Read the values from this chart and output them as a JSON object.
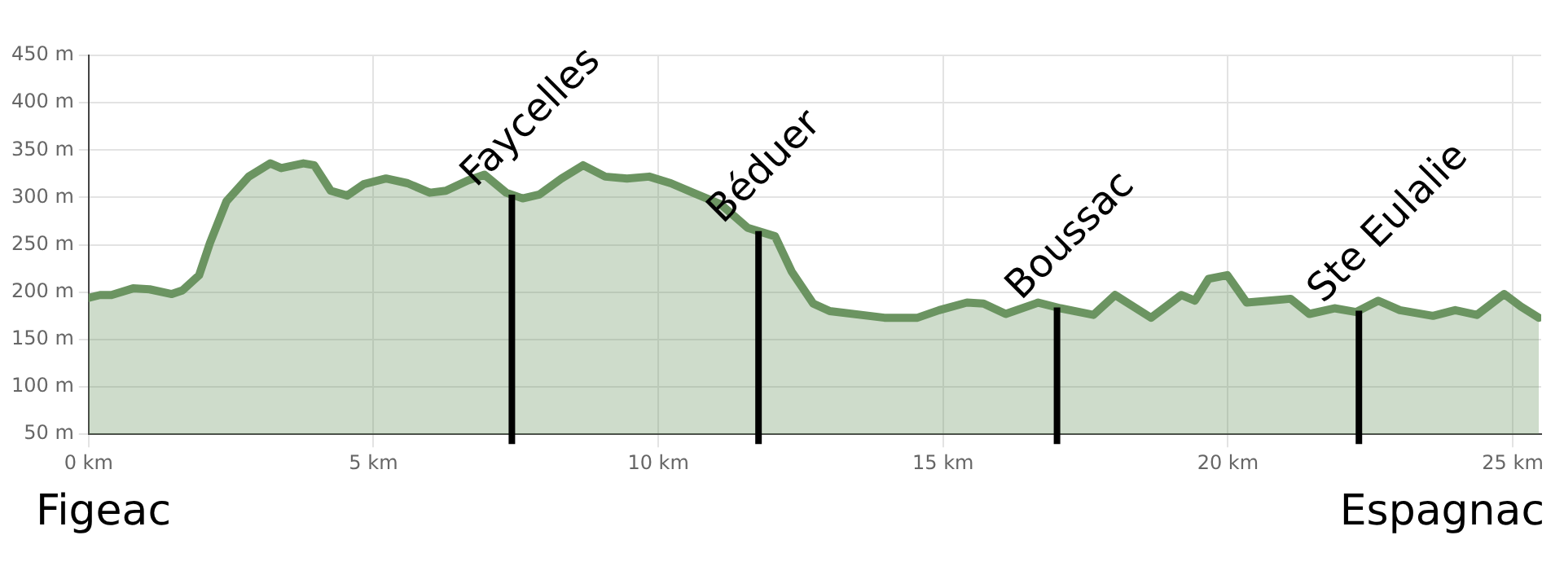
{
  "chart_data": {
    "type": "area",
    "x": [
      0,
      0.2,
      0.4,
      0.78,
      1.07,
      1.46,
      1.65,
      1.94,
      2.13,
      2.42,
      2.81,
      3.19,
      3.38,
      3.77,
      3.96,
      4.25,
      4.54,
      4.83,
      5.22,
      5.6,
      5.99,
      6.27,
      6.66,
      6.95,
      7.33,
      7.62,
      7.91,
      8.3,
      8.68,
      9.07,
      9.45,
      9.84,
      10.22,
      10.61,
      11.09,
      11.57,
      12.05,
      12.34,
      12.72,
      13.01,
      13.97,
      14.55,
      14.93,
      15.42,
      15.71,
      16.1,
      16.67,
      17.06,
      17.64,
      18.02,
      18.65,
      19.18,
      19.42,
      19.66,
      19.99,
      20.33,
      20.71,
      21.1,
      21.43,
      21.87,
      22.25,
      22.64,
      23.02,
      23.6,
      23.99,
      24.37,
      24.85,
      25.14,
      25.46
    ],
    "series": [
      {
        "color": "#6b9461",
        "values": [
          194,
          197,
          197,
          204,
          203,
          198,
          202,
          218,
          252,
          296,
          322,
          336,
          331,
          336,
          334,
          307,
          302,
          314,
          320,
          315,
          305,
          307,
          318,
          324,
          305,
          299,
          303,
          320,
          334,
          322,
          320,
          322,
          315,
          305,
          293,
          268,
          259,
          222,
          188,
          180,
          173,
          173,
          181,
          189,
          188,
          177,
          189,
          183,
          176,
          197,
          173,
          197,
          191,
          214,
          218,
          189,
          191,
          193,
          177,
          183,
          179,
          191,
          181,
          175,
          181,
          176,
          198,
          185,
          173
        ]
      }
    ],
    "xlim": [
      0,
      25.5
    ],
    "xticks": [
      {
        "value": 0,
        "label": "0 km"
      },
      {
        "value": 5,
        "label": "5 km"
      },
      {
        "value": 10,
        "label": "10 km"
      },
      {
        "value": 15,
        "label": "15 km"
      },
      {
        "value": 20,
        "label": "20 km"
      },
      {
        "value": 25,
        "label": "25 km"
      }
    ],
    "ylim": [
      50,
      450
    ],
    "yticks": [
      {
        "value": 50,
        "label": "50 m"
      },
      {
        "value": 100,
        "label": "100 m"
      },
      {
        "value": 150,
        "label": "150 m"
      },
      {
        "value": 200,
        "label": "200 m"
      },
      {
        "value": 250,
        "label": "250 m"
      },
      {
        "value": 300,
        "label": "300 m"
      },
      {
        "value": 350,
        "label": "350 m"
      },
      {
        "value": 400,
        "label": "400 m"
      },
      {
        "value": 450,
        "label": "450 m"
      }
    ],
    "grid": true,
    "ref_lines": [
      {
        "axis": "x",
        "value": 7.43,
        "label": "Faycelles",
        "color": "#000000"
      },
      {
        "axis": "x",
        "value": 11.76,
        "label": "Béduer",
        "color": "#000000"
      },
      {
        "axis": "x",
        "value": 17.0,
        "label": "Boussac",
        "color": "#000000"
      },
      {
        "axis": "x",
        "value": 22.3,
        "label": "Ste Eulalie",
        "color": "#000000"
      }
    ],
    "annotations": [
      "Figeac",
      "Espagnac"
    ]
  }
}
